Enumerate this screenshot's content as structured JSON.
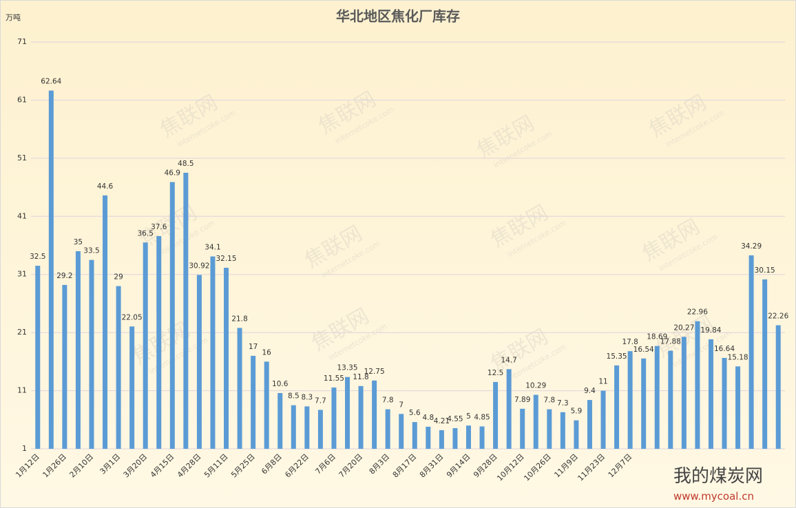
{
  "chart_data": {
    "type": "bar",
    "title": "华北地区焦化厂库存",
    "y_unit": "万吨",
    "categories": [
      "1月12日",
      null,
      "1月26日",
      null,
      "2月10日",
      null,
      "3月1日",
      null,
      "3月20日",
      null,
      "4月15日",
      null,
      "4月28日",
      null,
      "5月11日",
      null,
      "5月25日",
      null,
      "6月8日",
      null,
      "6月22日",
      null,
      "7月6日",
      null,
      "7月20日",
      null,
      "8月3日",
      null,
      "8月17日",
      null,
      "8月31日",
      null,
      "9月14日",
      null,
      "9月28日",
      null,
      "10月12日",
      null,
      "10月26日",
      null,
      "11月9日",
      null,
      "11月23日",
      null,
      "12月7日",
      null,
      null,
      null,
      null,
      null,
      null,
      null,
      null,
      null,
      null,
      null
    ],
    "values": [
      32.5,
      62.64,
      29.2,
      35,
      33.5,
      44.6,
      29,
      22.05,
      36.5,
      37.6,
      46.9,
      48.5,
      30.92,
      34.1,
      32.15,
      21.8,
      17,
      16,
      10.6,
      8.5,
      8.3,
      7.7,
      11.55,
      13.35,
      11.8,
      12.75,
      7.8,
      7,
      5.6,
      4.8,
      4.21,
      4.55,
      5,
      4.85,
      12.5,
      14.7,
      7.89,
      10.29,
      7.8,
      7.3,
      5.9,
      9.4,
      11,
      15.35,
      17.8,
      16.54,
      18.69,
      17.88,
      20.27,
      22.96,
      19.84,
      16.64,
      15.18,
      34.29,
      30.15,
      22.26
    ],
    "color": "#5b9bd5",
    "ylim": [
      1,
      71
    ],
    "yticks": [
      1,
      11,
      21,
      31,
      41,
      51,
      61,
      71
    ],
    "grid": true,
    "watermark": "焦联网",
    "watermark_url": "internetcoke.com",
    "brand": "我的煤炭网",
    "brand_url": "www.mycoal.cn"
  }
}
